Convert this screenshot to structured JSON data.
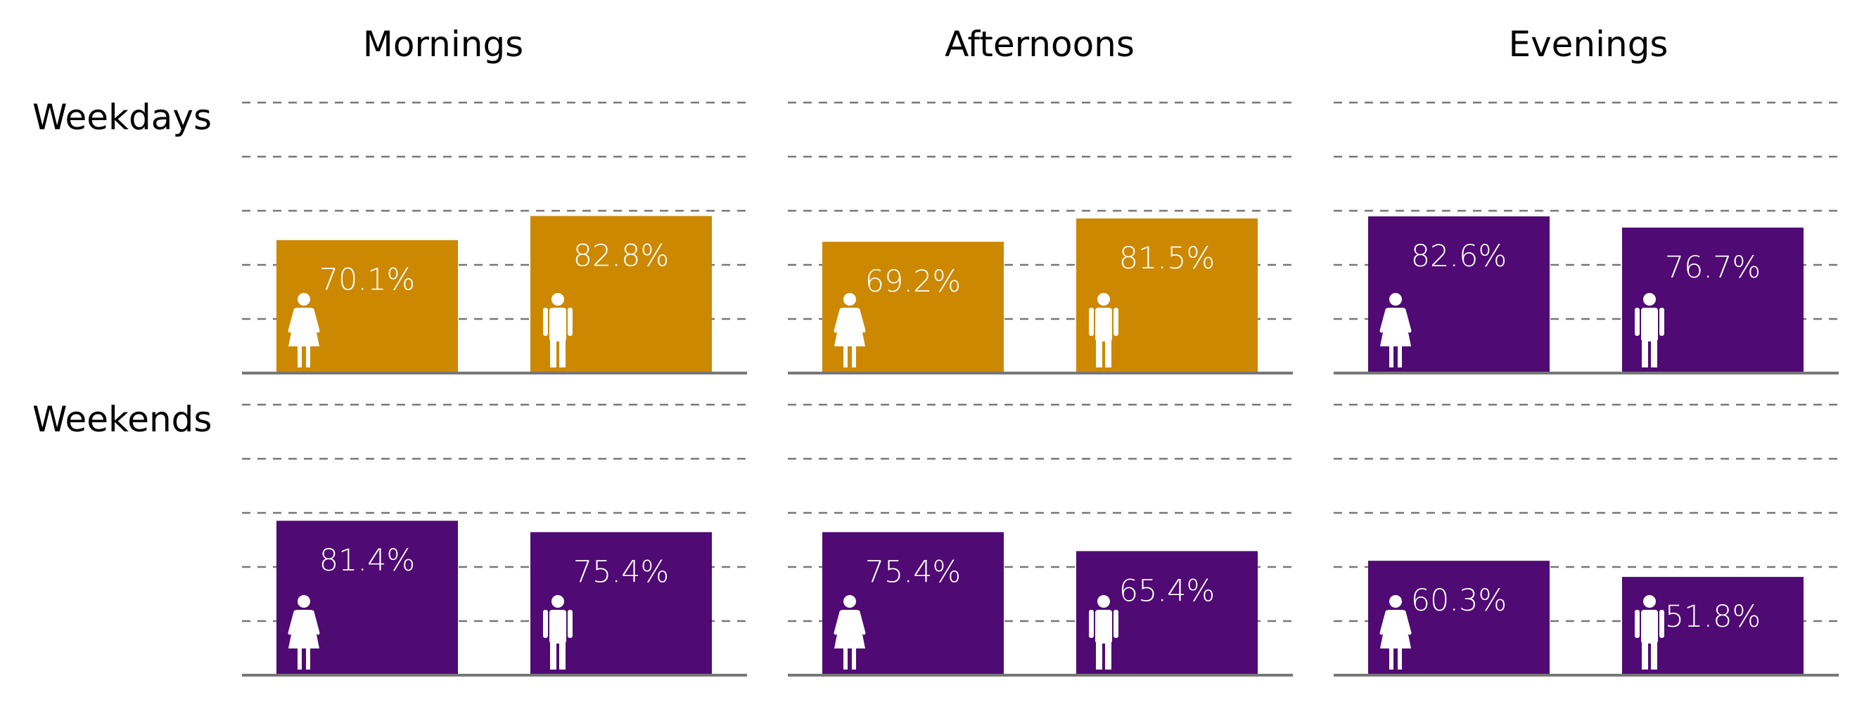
{
  "chart_data": {
    "type": "bar",
    "columns": [
      "Mornings",
      "Afternoons",
      "Evenings"
    ],
    "rows": [
      "Weekdays",
      "Weekends"
    ],
    "ylim": [
      0,
      100
    ],
    "grid": true,
    "colors": {
      "highlight": "#CC8800",
      "default": "#4F0A73"
    },
    "panels": [
      {
        "row": "Weekdays",
        "column": "Mornings",
        "highlight": true,
        "bars": [
          {
            "gender": "female",
            "value": 70.1,
            "label": "70.1%"
          },
          {
            "gender": "male",
            "value": 82.8,
            "label": "82.8%"
          }
        ]
      },
      {
        "row": "Weekdays",
        "column": "Afternoons",
        "highlight": true,
        "bars": [
          {
            "gender": "female",
            "value": 69.2,
            "label": "69.2%"
          },
          {
            "gender": "male",
            "value": 81.5,
            "label": "81.5%"
          }
        ]
      },
      {
        "row": "Weekdays",
        "column": "Evenings",
        "highlight": false,
        "bars": [
          {
            "gender": "female",
            "value": 82.6,
            "label": "82.6%"
          },
          {
            "gender": "male",
            "value": 76.7,
            "label": "76.7%"
          }
        ]
      },
      {
        "row": "Weekends",
        "column": "Mornings",
        "highlight": false,
        "bars": [
          {
            "gender": "female",
            "value": 81.4,
            "label": "81.4%"
          },
          {
            "gender": "male",
            "value": 75.4,
            "label": "75.4%"
          }
        ]
      },
      {
        "row": "Weekends",
        "column": "Afternoons",
        "highlight": false,
        "bars": [
          {
            "gender": "female",
            "value": 75.4,
            "label": "75.4%"
          },
          {
            "gender": "male",
            "value": 65.4,
            "label": "65.4%"
          }
        ]
      },
      {
        "row": "Weekends",
        "column": "Evenings",
        "highlight": false,
        "bars": [
          {
            "gender": "female",
            "value": 60.3,
            "label": "60.3%"
          },
          {
            "gender": "male",
            "value": 51.8,
            "label": "51.8%"
          }
        ]
      }
    ]
  }
}
